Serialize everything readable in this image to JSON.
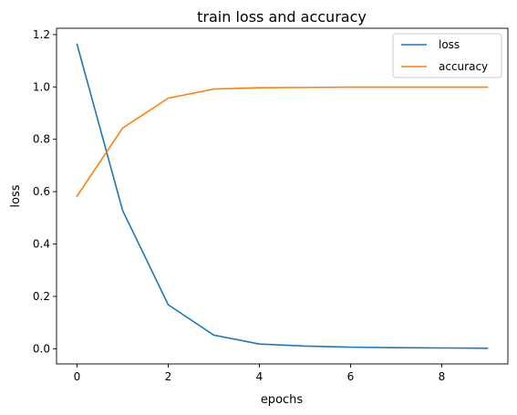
{
  "chart_data": {
    "type": "line",
    "title": "train loss and accuracy",
    "xlabel": "epochs",
    "ylabel": "loss",
    "xlim": [
      -0.45,
      9.45
    ],
    "ylim": [
      -0.058,
      1.224
    ],
    "x_ticks": [
      0,
      2,
      4,
      6,
      8
    ],
    "y_ticks": [
      0.0,
      0.2,
      0.4,
      0.6,
      0.8,
      1.0,
      1.2
    ],
    "y_tick_labels": [
      "0.0",
      "0.2",
      "0.4",
      "0.6",
      "0.8",
      "1.0",
      "1.2"
    ],
    "grid": false,
    "legend_position": "top-right",
    "x": [
      0,
      1,
      2,
      3,
      4,
      5,
      6,
      7,
      8,
      9
    ],
    "series": [
      {
        "name": "loss",
        "color": "#1f77b4",
        "values": [
          1.163,
          0.528,
          0.168,
          0.052,
          0.018,
          0.01,
          0.006,
          0.004,
          0.003,
          0.002
        ]
      },
      {
        "name": "accuracy",
        "color": "#ff7f0e",
        "values": [
          0.583,
          0.843,
          0.957,
          0.992,
          0.997,
          0.998,
          0.999,
          0.999,
          0.999,
          0.999
        ]
      }
    ]
  }
}
